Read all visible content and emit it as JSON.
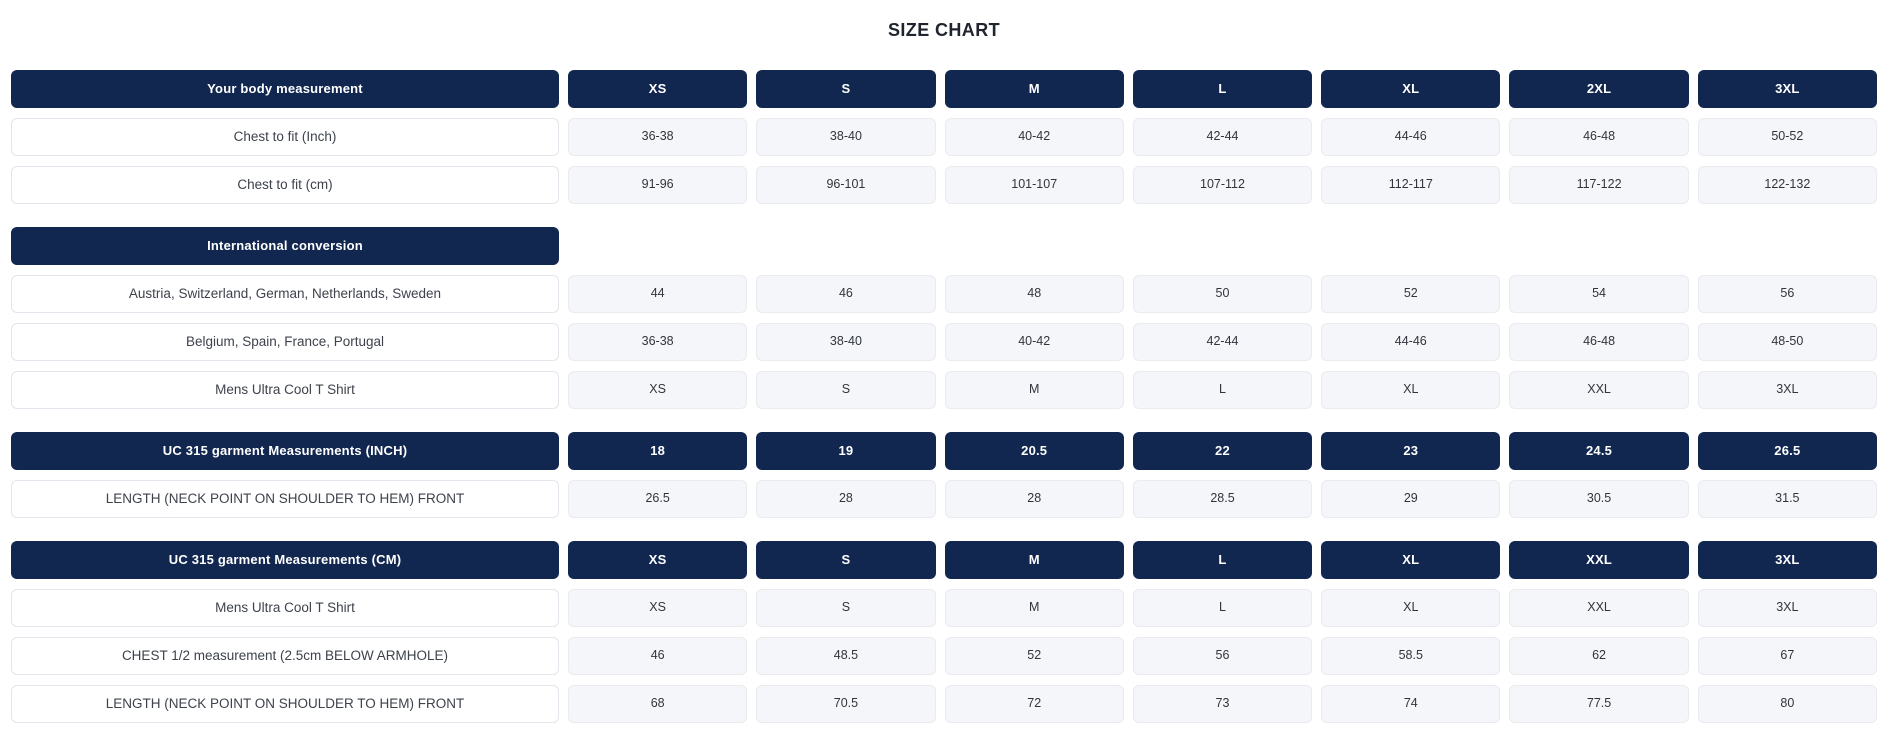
{
  "title": "SIZE CHART",
  "colors": {
    "header_bg": "#112750",
    "header_text": "#ffffff",
    "value_cell_bg": "#f5f6f9",
    "value_cell_border": "#e9ebf0",
    "label_cell_bg": "#ffffff",
    "label_cell_border": "#e2e5eb",
    "title_text": "#20242e",
    "body_text": "#30343c"
  },
  "sections": [
    {
      "header_label": "Your body measurement",
      "header_cols": [
        "XS",
        "S",
        "M",
        "L",
        "XL",
        "2XL",
        "3XL"
      ],
      "rows": [
        {
          "label": "Chest to fit (Inch)",
          "values": [
            "36-38",
            "38-40",
            "40-42",
            "42-44",
            "44-46",
            "46-48",
            "50-52"
          ]
        },
        {
          "label": "Chest to fit (cm)",
          "values": [
            "91-96",
            "96-101",
            "101-107",
            "107-112",
            "112-117",
            "117-122",
            "122-132"
          ]
        }
      ]
    },
    {
      "header_label": "International conversion",
      "header_cols": [],
      "rows": [
        {
          "label": "Austria, Switzerland, German, Netherlands, Sweden",
          "values": [
            "44",
            "46",
            "48",
            "50",
            "52",
            "54",
            "56"
          ]
        },
        {
          "label": "Belgium, Spain, France, Portugal",
          "values": [
            "36-38",
            "38-40",
            "40-42",
            "42-44",
            "44-46",
            "46-48",
            "48-50"
          ]
        },
        {
          "label": "Mens Ultra Cool T Shirt",
          "values": [
            "XS",
            "S",
            "M",
            "L",
            "XL",
            "XXL",
            "3XL"
          ]
        }
      ]
    },
    {
      "header_label": "UC 315 garment Measurements (INCH)",
      "header_cols": [
        "18",
        "19",
        "20.5",
        "22",
        "23",
        "24.5",
        "26.5"
      ],
      "rows": [
        {
          "label": "LENGTH (NECK POINT ON SHOULDER TO HEM) FRONT",
          "values": [
            "26.5",
            "28",
            "28",
            "28.5",
            "29",
            "30.5",
            "31.5"
          ]
        }
      ]
    },
    {
      "header_label": "UC 315 garment Measurements (CM)",
      "header_cols": [
        "XS",
        "S",
        "M",
        "L",
        "XL",
        "XXL",
        "3XL"
      ],
      "rows": [
        {
          "label": "Mens Ultra Cool T Shirt",
          "values": [
            "XS",
            "S",
            "M",
            "L",
            "XL",
            "XXL",
            "3XL"
          ]
        },
        {
          "label": "CHEST 1/2 measurement (2.5cm BELOW ARMHOLE)",
          "values": [
            "46",
            "48.5",
            "52",
            "56",
            "58.5",
            "62",
            "67"
          ]
        },
        {
          "label": "LENGTH (NECK POINT ON SHOULDER TO HEM) FRONT",
          "values": [
            "68",
            "70.5",
            "72",
            "73",
            "74",
            "77.5",
            "80"
          ]
        }
      ]
    }
  ]
}
